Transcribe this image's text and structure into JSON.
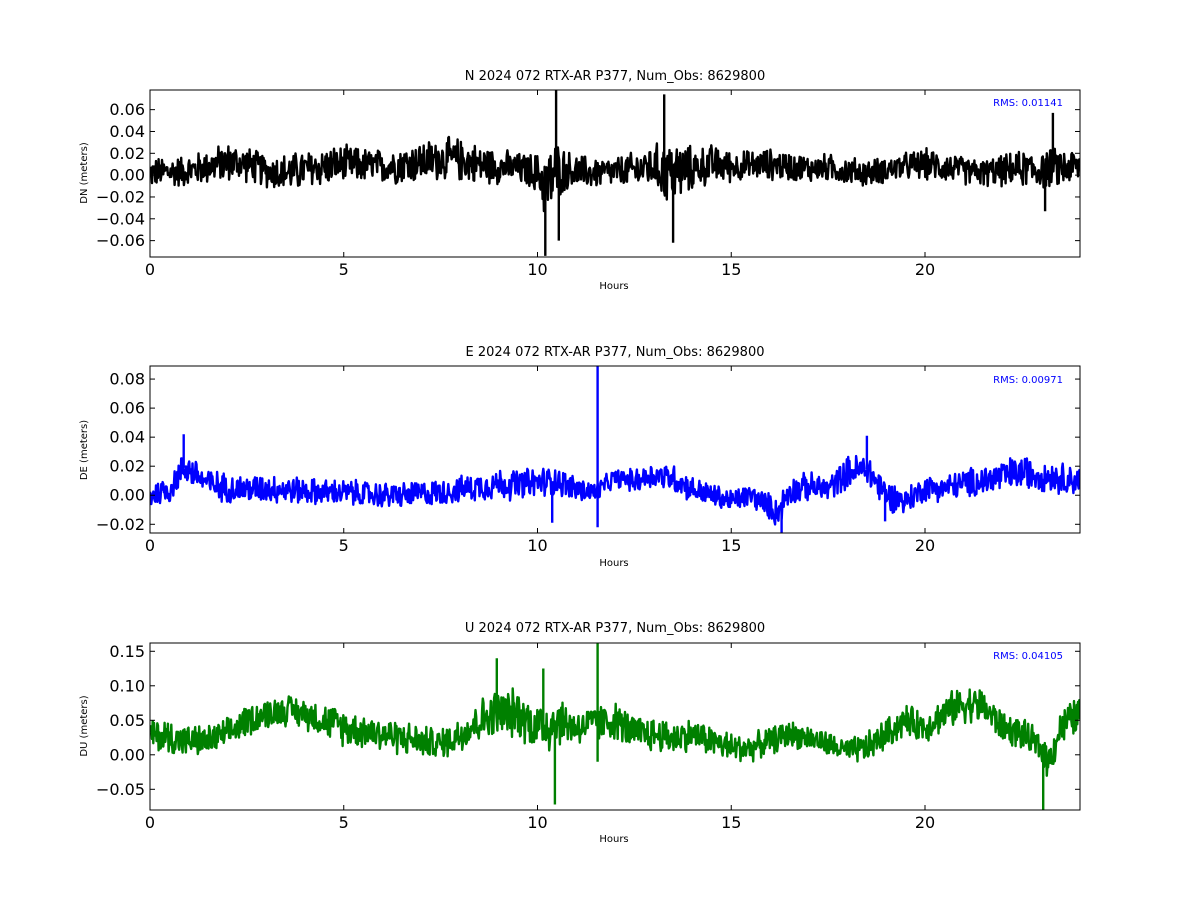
{
  "chart_data": [
    {
      "type": "line",
      "title": "N 2024 072 RTX-AR  P377, Num_Obs: 8629800",
      "xlabel": "Hours",
      "ylabel": "DN (meters)",
      "xlim": [
        0,
        24
      ],
      "ylim": [
        -0.075,
        0.078
      ],
      "xticks": [
        0,
        5,
        10,
        15,
        20
      ],
      "xtick_labels": [
        "0",
        "5",
        "10",
        "15",
        "20"
      ],
      "yticks": [
        -0.06,
        -0.04,
        -0.02,
        0.0,
        0.02,
        0.04,
        0.06
      ],
      "ytick_labels": [
        "−0.06",
        "−0.04",
        "−0.02",
        "0.00",
        "0.02",
        "0.04",
        "0.06"
      ],
      "grid": false,
      "annotation": "RMS:  0.01141",
      "annotation_color": "#0000ff",
      "series": [
        {
          "color": "#000000",
          "x": [
            0,
            0.5,
            1,
            1.5,
            2,
            2.5,
            3,
            3.5,
            4,
            4.5,
            5,
            5.5,
            6,
            6.5,
            7,
            7.5,
            8,
            8.5,
            9,
            9.5,
            10,
            10.25,
            10.5,
            10.75,
            11,
            11.5,
            12,
            12.5,
            13,
            13.25,
            13.5,
            14,
            14.5,
            15,
            15.5,
            16,
            16.5,
            17,
            17.5,
            18,
            18.5,
            19,
            19.5,
            20,
            20.5,
            21,
            21.5,
            22,
            22.5,
            23,
            23.5,
            24
          ],
          "center": [
            0.002,
            0.003,
            0.004,
            0.008,
            0.012,
            0.01,
            0.004,
            0.002,
            0.005,
            0.008,
            0.01,
            0.009,
            0.008,
            0.01,
            0.012,
            0.015,
            0.014,
            0.01,
            0.008,
            0.006,
            0.002,
            -0.01,
            0.004,
            0.005,
            0.003,
            0.002,
            0.003,
            0.005,
            0.008,
            0.004,
            0.002,
            0.006,
            0.01,
            0.008,
            0.009,
            0.01,
            0.008,
            0.006,
            0.007,
            0.004,
            0.002,
            0.005,
            0.008,
            0.01,
            0.008,
            0.004,
            0.002,
            0.004,
            0.006,
            0.005,
            0.007,
            0.008
          ],
          "spread": [
            0.015,
            0.016,
            0.016,
            0.018,
            0.02,
            0.018,
            0.017,
            0.02,
            0.02,
            0.02,
            0.019,
            0.018,
            0.017,
            0.02,
            0.021,
            0.022,
            0.022,
            0.02,
            0.018,
            0.016,
            0.02,
            0.04,
            0.03,
            0.02,
            0.018,
            0.016,
            0.015,
            0.018,
            0.022,
            0.03,
            0.035,
            0.022,
            0.02,
            0.016,
            0.015,
            0.016,
            0.015,
            0.014,
            0.014,
            0.014,
            0.014,
            0.013,
            0.014,
            0.016,
            0.016,
            0.014,
            0.014,
            0.016,
            0.018,
            0.02,
            0.02,
            0.018
          ],
          "spikes": [
            {
              "x": 10.2,
              "y": -0.074
            },
            {
              "x": 10.48,
              "y": 0.078
            },
            {
              "x": 10.55,
              "y": -0.06
            },
            {
              "x": 13.27,
              "y": 0.074
            },
            {
              "x": 13.5,
              "y": -0.062
            },
            {
              "x": 23.3,
              "y": 0.057
            },
            {
              "x": 23.1,
              "y": -0.033
            }
          ]
        }
      ]
    },
    {
      "type": "line",
      "title": "E 2024 072 RTX-AR  P377, Num_Obs: 8629800",
      "xlabel": "Hours",
      "ylabel": "DE (meters)",
      "xlim": [
        0,
        24
      ],
      "ylim": [
        -0.026,
        0.089
      ],
      "xticks": [
        0,
        5,
        10,
        15,
        20
      ],
      "xtick_labels": [
        "0",
        "5",
        "10",
        "15",
        "20"
      ],
      "yticks": [
        -0.02,
        0.0,
        0.02,
        0.04,
        0.06,
        0.08
      ],
      "ytick_labels": [
        "−0.02",
        "0.00",
        "0.02",
        "0.04",
        "0.06",
        "0.08"
      ],
      "grid": false,
      "annotation": "RMS:  0.00971",
      "annotation_color": "#0000ff",
      "series": [
        {
          "color": "#0000ff",
          "x": [
            0,
            0.5,
            0.9,
            1.5,
            2,
            2.5,
            3,
            3.5,
            4,
            4.5,
            5,
            5.5,
            6,
            6.5,
            7,
            7.5,
            8,
            8.5,
            9,
            9.5,
            10,
            10.5,
            11,
            11.5,
            12,
            12.5,
            13,
            13.5,
            14,
            14.5,
            15,
            15.5,
            16,
            16.2,
            16.5,
            17,
            17.5,
            18,
            18.5,
            19,
            19.5,
            20,
            20.5,
            21,
            21.5,
            22,
            22.5,
            23,
            23.5,
            24
          ],
          "center": [
            0.0,
            0.004,
            0.02,
            0.008,
            0.005,
            0.004,
            0.005,
            0.004,
            0.003,
            0.002,
            0.002,
            0.001,
            0.0,
            0.0,
            0.001,
            0.002,
            0.004,
            0.006,
            0.008,
            0.007,
            0.009,
            0.01,
            0.004,
            0.002,
            0.012,
            0.01,
            0.014,
            0.012,
            0.004,
            0.0,
            -0.004,
            0.0,
            -0.008,
            -0.012,
            0.003,
            0.006,
            0.004,
            0.016,
            0.018,
            0.0,
            -0.004,
            0.005,
            0.005,
            0.008,
            0.01,
            0.013,
            0.016,
            0.014,
            0.012,
            0.01
          ],
          "spread": [
            0.01,
            0.011,
            0.012,
            0.012,
            0.011,
            0.011,
            0.011,
            0.011,
            0.01,
            0.01,
            0.01,
            0.01,
            0.01,
            0.01,
            0.01,
            0.01,
            0.01,
            0.011,
            0.012,
            0.012,
            0.012,
            0.011,
            0.01,
            0.008,
            0.007,
            0.009,
            0.01,
            0.011,
            0.01,
            0.009,
            0.009,
            0.009,
            0.01,
            0.012,
            0.011,
            0.011,
            0.01,
            0.012,
            0.013,
            0.012,
            0.01,
            0.01,
            0.01,
            0.011,
            0.012,
            0.013,
            0.013,
            0.012,
            0.012,
            0.011
          ],
          "spikes": [
            {
              "x": 11.55,
              "y": 0.089
            },
            {
              "x": 11.55,
              "y": -0.022
            },
            {
              "x": 16.3,
              "y": -0.026
            },
            {
              "x": 18.5,
              "y": 0.041
            },
            {
              "x": 18.97,
              "y": -0.018
            },
            {
              "x": 0.87,
              "y": 0.042
            },
            {
              "x": 10.38,
              "y": -0.019
            }
          ]
        }
      ]
    },
    {
      "type": "line",
      "title": "U 2024 072 RTX-AR  P377, Num_Obs: 8629800",
      "xlabel": "Hours",
      "ylabel": "DU (meters)",
      "xlim": [
        0,
        24
      ],
      "ylim": [
        -0.08,
        0.162
      ],
      "xticks": [
        0,
        5,
        10,
        15,
        20
      ],
      "xtick_labels": [
        "0",
        "5",
        "10",
        "15",
        "20"
      ],
      "yticks": [
        -0.05,
        0.0,
        0.05,
        0.1,
        0.15
      ],
      "ytick_labels": [
        "−0.05",
        "0.00",
        "0.05",
        "0.10",
        "0.15"
      ],
      "grid": false,
      "annotation": "RMS:  0.04105",
      "annotation_color": "#0000ff",
      "series": [
        {
          "color": "#008000",
          "x": [
            0,
            0.5,
            1,
            1.5,
            2,
            2.5,
            3,
            3.5,
            4,
            4.5,
            5,
            5.5,
            6,
            6.5,
            7,
            7.5,
            8,
            8.5,
            9,
            9.5,
            10,
            10.3,
            10.5,
            11,
            11.5,
            12,
            12.5,
            13,
            13.5,
            14,
            14.5,
            15,
            15.5,
            16,
            16.5,
            17,
            17.5,
            18,
            18.5,
            19,
            19.5,
            20,
            20.5,
            21,
            21.5,
            22,
            22.5,
            23,
            23.2,
            23.5,
            24
          ],
          "center": [
            0.03,
            0.025,
            0.02,
            0.02,
            0.03,
            0.05,
            0.06,
            0.065,
            0.06,
            0.05,
            0.04,
            0.035,
            0.03,
            0.025,
            0.02,
            0.015,
            0.03,
            0.05,
            0.06,
            0.06,
            0.04,
            0.045,
            0.05,
            0.04,
            0.045,
            0.05,
            0.03,
            0.03,
            0.025,
            0.03,
            0.02,
            0.01,
            0.01,
            0.02,
            0.03,
            0.025,
            0.015,
            0.005,
            0.01,
            0.03,
            0.05,
            0.04,
            0.06,
            0.075,
            0.07,
            0.04,
            0.03,
            0.01,
            -0.01,
            0.04,
            0.06
          ],
          "spread": [
            0.025,
            0.03,
            0.025,
            0.025,
            0.025,
            0.025,
            0.025,
            0.025,
            0.025,
            0.028,
            0.03,
            0.028,
            0.028,
            0.028,
            0.025,
            0.025,
            0.03,
            0.035,
            0.04,
            0.04,
            0.04,
            0.05,
            0.04,
            0.03,
            0.03,
            0.03,
            0.03,
            0.028,
            0.028,
            0.025,
            0.025,
            0.025,
            0.022,
            0.022,
            0.022,
            0.02,
            0.02,
            0.02,
            0.025,
            0.025,
            0.025,
            0.025,
            0.028,
            0.03,
            0.03,
            0.025,
            0.025,
            0.025,
            0.03,
            0.03,
            0.03
          ],
          "spikes": [
            {
              "x": 11.55,
              "y": 0.162
            },
            {
              "x": 11.55,
              "y": -0.01
            },
            {
              "x": 10.45,
              "y": -0.072
            },
            {
              "x": 23.05,
              "y": -0.08
            },
            {
              "x": 8.95,
              "y": 0.14
            },
            {
              "x": 10.15,
              "y": 0.125
            }
          ]
        }
      ]
    }
  ]
}
